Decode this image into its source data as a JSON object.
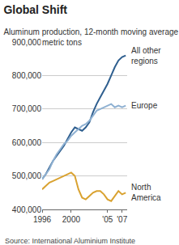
{
  "chart_data": {
    "type": "line",
    "title": "Global Shift",
    "subtitle": "Aluminum production, 12-month moving average",
    "y_label": "metric tons",
    "source": "Source: International Aluminium Institute",
    "x": [
      1996,
      1996.5,
      1997,
      1997.5,
      1998,
      1998.5,
      1999,
      1999.5,
      2000,
      2000.5,
      2001,
      2001.5,
      2002,
      2002.5,
      2003,
      2003.5,
      2004,
      2004.5,
      2005,
      2005.5,
      2006,
      2006.5,
      2007,
      2007.5
    ],
    "series": [
      {
        "name": "All other regions",
        "color": "#2f5f8f",
        "values": [
          490000,
          505000,
          525000,
          545000,
          560000,
          575000,
          590000,
          610000,
          630000,
          645000,
          640000,
          635000,
          645000,
          660000,
          690000,
          715000,
          735000,
          755000,
          775000,
          800000,
          825000,
          845000,
          855000,
          860000
        ]
      },
      {
        "name": "Europe",
        "color": "#8fb1d2",
        "values": [
          490000,
          505000,
          520000,
          545000,
          565000,
          580000,
          595000,
          605000,
          620000,
          630000,
          640000,
          650000,
          655000,
          665000,
          680000,
          695000,
          700000,
          705000,
          710000,
          715000,
          705000,
          710000,
          705000,
          710000
        ]
      },
      {
        "name": "North America",
        "color": "#d9a230",
        "values": [
          460000,
          470000,
          480000,
          485000,
          490000,
          495000,
          500000,
          505000,
          510000,
          500000,
          460000,
          435000,
          430000,
          440000,
          450000,
          455000,
          455000,
          445000,
          430000,
          425000,
          440000,
          455000,
          445000,
          450000
        ]
      }
    ],
    "xlim": [
      1996,
      2007.7
    ],
    "xticks": [
      1996,
      2000,
      {
        "value": 2005,
        "label": "'05"
      },
      {
        "value": 2007,
        "label": "'07"
      }
    ],
    "ylim": [
      400000,
      900000
    ],
    "yticks": [
      {
        "value": 400000,
        "label": "400,000"
      },
      {
        "value": 500000,
        "label": "500,000"
      },
      {
        "value": 600000,
        "label": "600,000"
      },
      {
        "value": 700000,
        "label": "700,000"
      },
      {
        "value": 800000,
        "label": "800,000"
      },
      {
        "value": 900000,
        "label": "900,000"
      }
    ],
    "grid": true
  }
}
